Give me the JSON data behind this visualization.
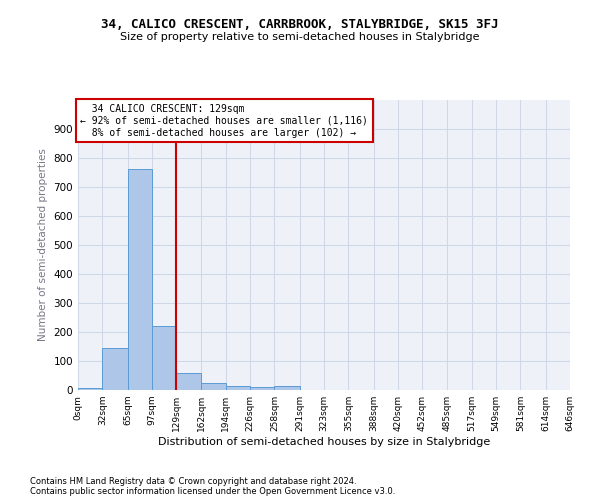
{
  "title": "34, CALICO CRESCENT, CARRBROOK, STALYBRIDGE, SK15 3FJ",
  "subtitle": "Size of property relative to semi-detached houses in Stalybridge",
  "xlabel": "Distribution of semi-detached houses by size in Stalybridge",
  "ylabel": "Number of semi-detached properties",
  "property_label": "34 CALICO CRESCENT: 129sqm",
  "pct_smaller": 92,
  "n_smaller": 1116,
  "pct_larger": 8,
  "n_larger": 102,
  "bin_edges": [
    0,
    32,
    65,
    97,
    129,
    162,
    194,
    226,
    258,
    291,
    323,
    355,
    388,
    420,
    452,
    485,
    517,
    549,
    581,
    614,
    646
  ],
  "bin_counts": [
    8,
    145,
    762,
    219,
    57,
    25,
    14,
    10,
    13,
    0,
    0,
    0,
    0,
    0,
    0,
    0,
    0,
    0,
    0,
    0
  ],
  "bar_color": "#aec6e8",
  "bar_edge_color": "#5b9bd5",
  "vline_x": 129,
  "vline_color": "#cc0000",
  "annotation_box_color": "#cc0000",
  "ylim": [
    0,
    1000
  ],
  "yticks": [
    0,
    100,
    200,
    300,
    400,
    500,
    600,
    700,
    800,
    900,
    1000
  ],
  "grid_color": "#d0d8e8",
  "bg_color": "#eef2f8",
  "footnote1": "Contains HM Land Registry data © Crown copyright and database right 2024.",
  "footnote2": "Contains public sector information licensed under the Open Government Licence v3.0."
}
